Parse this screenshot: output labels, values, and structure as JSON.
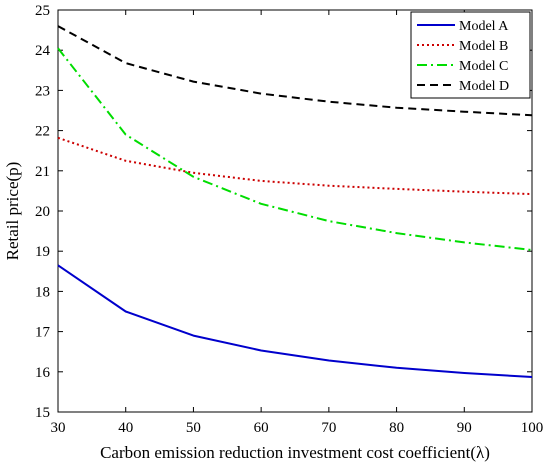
{
  "chart_data": {
    "type": "line",
    "title": "",
    "xlabel": "Carbon emission reduction investment cost coefficient(λ)",
    "ylabel": "Retail price(p)",
    "xlim": [
      30,
      100
    ],
    "ylim": [
      15,
      25
    ],
    "xticks": [
      30,
      40,
      50,
      60,
      70,
      80,
      90,
      100
    ],
    "yticks": [
      15,
      16,
      17,
      18,
      19,
      20,
      21,
      22,
      23,
      24,
      25
    ],
    "grid": false,
    "legend_position": "top-right",
    "x": [
      30,
      40,
      50,
      60,
      70,
      80,
      90,
      100
    ],
    "series": [
      {
        "name": "Model A",
        "color": "#0000cc",
        "style": "solid",
        "values": [
          18.65,
          17.5,
          16.9,
          16.53,
          16.28,
          16.1,
          15.97,
          15.87
        ]
      },
      {
        "name": "Model B",
        "color": "#cc0000",
        "style": "dotted",
        "values": [
          21.82,
          21.25,
          20.95,
          20.75,
          20.63,
          20.55,
          20.48,
          20.42
        ]
      },
      {
        "name": "Model C",
        "color": "#00dd00",
        "style": "dashdot",
        "values": [
          24.05,
          21.9,
          20.85,
          20.18,
          19.75,
          19.45,
          19.22,
          19.03
        ]
      },
      {
        "name": "Model D",
        "color": "#000000",
        "style": "dashed",
        "values": [
          24.6,
          23.68,
          23.22,
          22.92,
          22.72,
          22.57,
          22.47,
          22.38
        ]
      }
    ]
  }
}
